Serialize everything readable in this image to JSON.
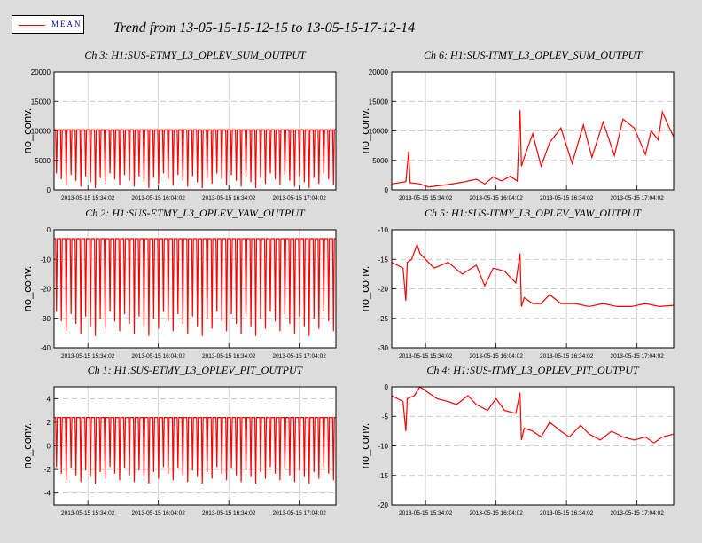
{
  "legend": {
    "label": "MEAN",
    "color": "#ff0000"
  },
  "main_title": "Trend from 13-05-15-15-12-15 to 13-05-15-17-12-14",
  "chart_data": [
    {
      "type": "line",
      "title": "Ch 3: H1:SUS-ETMY_L3_OPLEV_SUM_OUTPUT",
      "ylabel": "no_conv.",
      "ylim": [
        0,
        20000
      ],
      "yticks": [
        "0",
        "5000",
        "10000",
        "15000",
        "20000"
      ],
      "xticks": [
        "2013-05-15 15:34:02",
        "2013-05-15 16:04:02",
        "2013-05-15 16:34:02",
        "2013-05-15 17:04:02"
      ],
      "grid": true,
      "series": [
        {
          "name": "MEAN",
          "baseline": 10200,
          "dips": 58,
          "dip_level": 300,
          "color": "#ff0000"
        }
      ]
    },
    {
      "type": "line",
      "title": "Ch 6: H1:SUS-ITMY_L3_OPLEV_SUM_OUTPUT",
      "ylabel": "no_conv.",
      "ylim": [
        0,
        20000
      ],
      "yticks": [
        "0",
        "5000",
        "10000",
        "15000",
        "20000"
      ],
      "xticks": [
        "2013-05-15 15:34:02",
        "2013-05-15 16:04:02",
        "2013-05-15 16:34:02",
        "2013-05-15 17:04:02"
      ],
      "grid": true,
      "series": [
        {
          "name": "MEAN",
          "x": [
            0,
            0.05,
            0.06,
            0.065,
            0.1,
            0.13,
            0.2,
            0.25,
            0.3,
            0.33,
            0.36,
            0.39,
            0.42,
            0.445,
            0.455,
            0.46,
            0.47,
            0.5,
            0.53,
            0.56,
            0.6,
            0.64,
            0.68,
            0.71,
            0.75,
            0.79,
            0.82,
            0.86,
            0.9,
            0.92,
            0.945,
            0.96,
            0.98,
            1.0
          ],
          "y": [
            1000,
            1400,
            6500,
            1200,
            1000,
            500,
            900,
            1300,
            1800,
            1000,
            2200,
            1500,
            2300,
            1500,
            13500,
            4000,
            5500,
            9500,
            4000,
            8000,
            10500,
            4500,
            11000,
            5500,
            11500,
            5800,
            12000,
            10500,
            6000,
            10000,
            8500,
            13200,
            11000,
            9000
          ],
          "color": "#ff0000"
        }
      ]
    },
    {
      "type": "line",
      "title": "Ch 2: H1:SUS-ETMY_L3_OPLEV_YAW_OUTPUT",
      "ylabel": "no_conv.",
      "ylim": [
        -40,
        0
      ],
      "yticks": [
        "-40",
        "-30",
        "-20",
        "-10",
        "0"
      ],
      "xticks": [
        "2013-05-15 15:34:02",
        "2013-05-15 16:04:02",
        "2013-05-15 16:34:02",
        "2013-05-15 17:04:02"
      ],
      "grid": true,
      "series": [
        {
          "name": "MEAN",
          "baseline": -3,
          "dips": 58,
          "dip_level": -36,
          "color": "#ff0000"
        }
      ]
    },
    {
      "type": "line",
      "title": "Ch 5: H1:SUS-ITMY_L3_OPLEV_YAW_OUTPUT",
      "ylabel": "no_conv.",
      "ylim": [
        -30,
        -10
      ],
      "yticks": [
        "-30",
        "-25",
        "-20",
        "-15",
        "-10"
      ],
      "xticks": [
        "2013-05-15 15:34:02",
        "2013-05-15 16:04:02",
        "2013-05-15 16:34:02",
        "2013-05-15 17:04:02"
      ],
      "grid": true,
      "series": [
        {
          "name": "MEAN",
          "x": [
            0,
            0.04,
            0.05,
            0.055,
            0.07,
            0.09,
            0.1,
            0.12,
            0.15,
            0.2,
            0.25,
            0.3,
            0.33,
            0.36,
            0.4,
            0.44,
            0.455,
            0.46,
            0.47,
            0.5,
            0.53,
            0.56,
            0.6,
            0.65,
            0.7,
            0.75,
            0.8,
            0.85,
            0.9,
            0.95,
            1.0
          ],
          "y": [
            -15.5,
            -16.5,
            -22,
            -15.5,
            -15,
            -12.5,
            -14,
            -15,
            -16.5,
            -15.5,
            -17.5,
            -16,
            -19.5,
            -16.5,
            -17,
            -19,
            -14,
            -23,
            -21.5,
            -22.5,
            -22.5,
            -21,
            -22.5,
            -22.5,
            -23,
            -22.5,
            -23,
            -23,
            -22.5,
            -23,
            -22.8
          ],
          "color": "#ff0000"
        }
      ]
    },
    {
      "type": "line",
      "title": "Ch 1: H1:SUS-ETMY_L3_OPLEV_PIT_OUTPUT",
      "ylabel": "no_conv.",
      "ylim": [
        -5,
        5
      ],
      "yticks": [
        "-4",
        "-2",
        "0",
        "2",
        "4"
      ],
      "xticks": [
        "2013-05-15 15:34:02",
        "2013-05-15 16:04:02",
        "2013-05-15 16:34:02",
        "2013-05-15 17:04:02"
      ],
      "grid": true,
      "series": [
        {
          "name": "MEAN",
          "baseline": 2.4,
          "dips": 58,
          "dip_level": -3.2,
          "color": "#ff0000"
        }
      ]
    },
    {
      "type": "line",
      "title": "Ch 4: H1:SUS-ITMY_L3_OPLEV_PIT_OUTPUT",
      "ylabel": "no_conv.",
      "ylim": [
        -20,
        0
      ],
      "yticks": [
        "-20",
        "-15",
        "-10",
        "-5",
        "0"
      ],
      "xticks": [
        "2013-05-15 15:34:02",
        "2013-05-15 16:04:02",
        "2013-05-15 16:34:02",
        "2013-05-15 17:04:02"
      ],
      "grid": true,
      "series": [
        {
          "name": "MEAN",
          "x": [
            0,
            0.04,
            0.05,
            0.055,
            0.08,
            0.1,
            0.13,
            0.16,
            0.2,
            0.23,
            0.27,
            0.3,
            0.34,
            0.37,
            0.4,
            0.44,
            0.455,
            0.46,
            0.47,
            0.5,
            0.53,
            0.56,
            0.6,
            0.63,
            0.67,
            0.7,
            0.74,
            0.78,
            0.82,
            0.86,
            0.9,
            0.93,
            0.96,
            1.0
          ],
          "y": [
            -1.5,
            -2.5,
            -7.5,
            -2,
            -1.5,
            0,
            -1,
            -2,
            -2.5,
            -3,
            -1.5,
            -3,
            -4,
            -2,
            -4,
            -4.5,
            -1,
            -9,
            -7,
            -7.5,
            -8.5,
            -6,
            -7.5,
            -8.5,
            -6.5,
            -8,
            -9,
            -7.5,
            -8.5,
            -9,
            -8.5,
            -9.5,
            -8.5,
            -8
          ],
          "color": "#ff0000"
        }
      ]
    }
  ]
}
